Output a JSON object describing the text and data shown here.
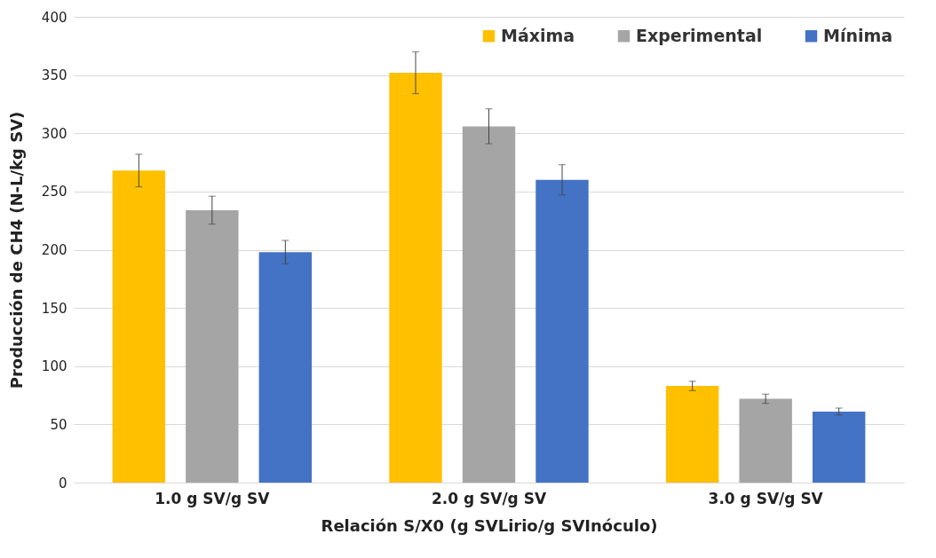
{
  "chart_data": {
    "type": "bar",
    "xlabel": "Relación S/X0 (g SVLirio/g SVInóculo)",
    "ylabel": "Producción de CH4 (N-L/kg SV)",
    "categories": [
      "1.0 g SV/g SV",
      "2.0 g SV/g SV",
      "3.0 g SV/g SV"
    ],
    "series": [
      {
        "name": "Máxima",
        "color": "#ffc000",
        "values": [
          268,
          352,
          83
        ],
        "errors": [
          14,
          18,
          4
        ]
      },
      {
        "name": "Experimental",
        "color": "#a5a5a5",
        "values": [
          234,
          306,
          72
        ],
        "errors": [
          12,
          15,
          4
        ]
      },
      {
        "name": "Mínima",
        "color": "#4472c4",
        "values": [
          198,
          260,
          61
        ],
        "errors": [
          10,
          13,
          3
        ]
      }
    ],
    "ylim": [
      0,
      400
    ],
    "yticks": [
      0,
      50,
      100,
      150,
      200,
      250,
      300,
      350,
      400
    ],
    "grid": "y",
    "legend": "top right"
  }
}
